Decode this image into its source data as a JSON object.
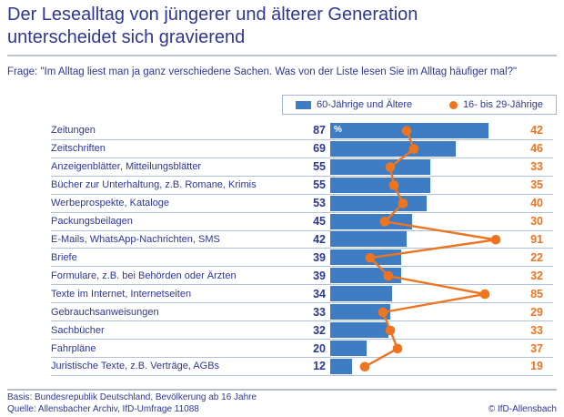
{
  "title": "Der Lesealltag von jüngerer und älterer Generation unterscheidet sich gravierend",
  "question": {
    "label": "Frage:",
    "text": "\"Im Alltag liest man ja ganz verschiedene Sachen. Was von der Liste lesen Sie im Alltag häufiger mal?\""
  },
  "legend": {
    "old_label": "60-Jährige und Ältere",
    "young_label": "16- bis 29-Jährige"
  },
  "unit_label": "%",
  "colors": {
    "text_navy": "#2e3791",
    "bar_blue": "#3e7dc3",
    "dot_orange": "#ee7420",
    "row_line": "#b3c0dc"
  },
  "chart_data": {
    "type": "bar",
    "orientation": "horizontal",
    "title": "Der Lesealltag von jüngerer und älterer Generation unterscheidet sich gravierend",
    "xlabel": "",
    "ylabel": "",
    "xlim": [
      0,
      100
    ],
    "unit": "%",
    "grid": false,
    "legend_position": "top-right",
    "categories": [
      "Zeitungen",
      "Zeitschriften",
      "Anzeigenblätter, Mitteilungsblätter",
      "Bücher zur Unterhaltung, z.B. Romane, Krimis",
      "Werbeprospekte, Kataloge",
      "Packungsbeilagen",
      "E-Mails, WhatsApp-Nachrichten, SMS",
      "Briefe",
      "Formulare, z.B. bei Behörden oder Ärzten",
      "Texte im Internet, Internetseiten",
      "Gebrauchsanweisungen",
      "Sachbücher",
      "Fahrpläne",
      "Juristische Texte, z.B. Verträge, AGBs"
    ],
    "series": [
      {
        "name": "60-Jährige und Ältere",
        "style": "bar",
        "color": "#3e7dc3",
        "values": [
          87,
          69,
          55,
          55,
          53,
          45,
          42,
          39,
          39,
          34,
          33,
          32,
          20,
          12
        ]
      },
      {
        "name": "16- bis 29-Jährige",
        "style": "dot-line",
        "color": "#ee7420",
        "values": [
          42,
          46,
          33,
          35,
          40,
          30,
          91,
          22,
          32,
          85,
          29,
          33,
          37,
          19
        ]
      }
    ]
  },
  "footer": {
    "basis": "Basis: Bundesrepublik Deutschland, Bevölkerung ab 16 Jahre",
    "source": "Quelle: Allensbacher Archiv, IfD-Umfrage 11088",
    "copyright": "© IfD-Allensbach"
  }
}
